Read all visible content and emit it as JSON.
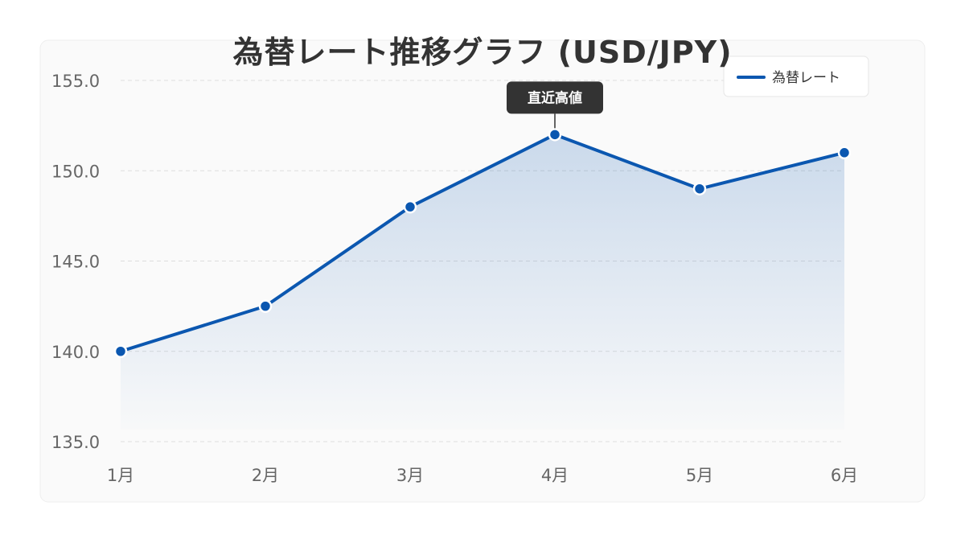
{
  "chart_data": {
    "type": "line",
    "title": "為替レート推移グラフ (USD/JPY)",
    "xlabel": "",
    "ylabel": "",
    "categories": [
      "1月",
      "2月",
      "3月",
      "4月",
      "5月",
      "6月"
    ],
    "series": [
      {
        "name": "為替レート",
        "values": [
          140.0,
          142.5,
          148.0,
          152.0,
          149.0,
          151.0
        ],
        "color": "#0b57b0"
      }
    ],
    "ylim": [
      135,
      155
    ],
    "yticks": [
      "155.0",
      "150.0",
      "145.0",
      "140.0",
      "135.0"
    ],
    "ytick_values": [
      155,
      150,
      145,
      140,
      135
    ],
    "grid": true,
    "area_fill": true,
    "legend_position": "top-right",
    "annotation": {
      "text": "直近高値",
      "category": "4月",
      "value": 152.0
    }
  }
}
